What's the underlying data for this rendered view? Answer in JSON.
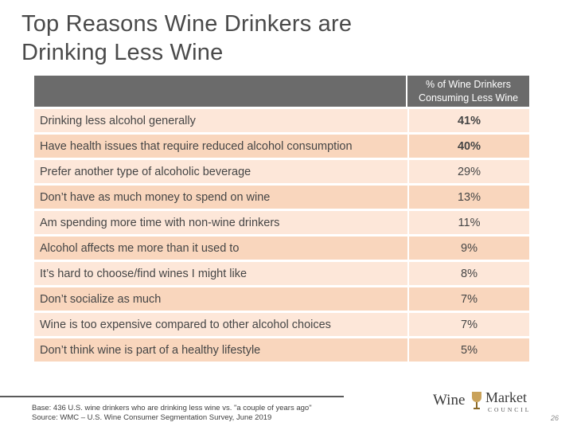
{
  "slide": {
    "title": "Top Reasons Wine Drinkers are Drinking Less Wine",
    "table": {
      "column_header": "% of Wine Drinkers Consuming Less Wine",
      "rows": [
        {
          "reason": "Drinking less alcohol generally",
          "value": "41%"
        },
        {
          "reason": "Have health issues that require reduced alcohol consumption",
          "value": "40%"
        },
        {
          "reason": "Prefer another type of alcoholic beverage",
          "value": "29%"
        },
        {
          "reason": "Don’t have as much money to spend on wine",
          "value": "13%"
        },
        {
          "reason": "Am spending more time with non-wine drinkers",
          "value": "11%"
        },
        {
          "reason": "Alcohol affects me more than it used to",
          "value": "9%"
        },
        {
          "reason": "It’s hard to choose/find wines I might like",
          "value": "8%"
        },
        {
          "reason": "Don’t socialize as much",
          "value": "7%"
        },
        {
          "reason": "Wine is too expensive compared to other alcohol choices",
          "value": "7%"
        },
        {
          "reason": "Don’t think wine is part of a healthy lifestyle",
          "value": "5%"
        }
      ]
    },
    "footnote": {
      "base": "Base: 436 U.S. wine drinkers who are drinking less wine vs. \"a couple of years ago\"",
      "source": "Source: WMC – U.S. Wine Consumer Segmentation Survey, June 2019"
    },
    "logo": {
      "word1": "Wine",
      "word2": "Market",
      "word3": "COUNCIL"
    },
    "page_number": "26",
    "colors": {
      "header_bg": "#6b6b6b",
      "row_bg": "#fde7d9",
      "row_highlight_bg": "#f9d6bd",
      "glass_gold": "#c9a25a"
    }
  }
}
